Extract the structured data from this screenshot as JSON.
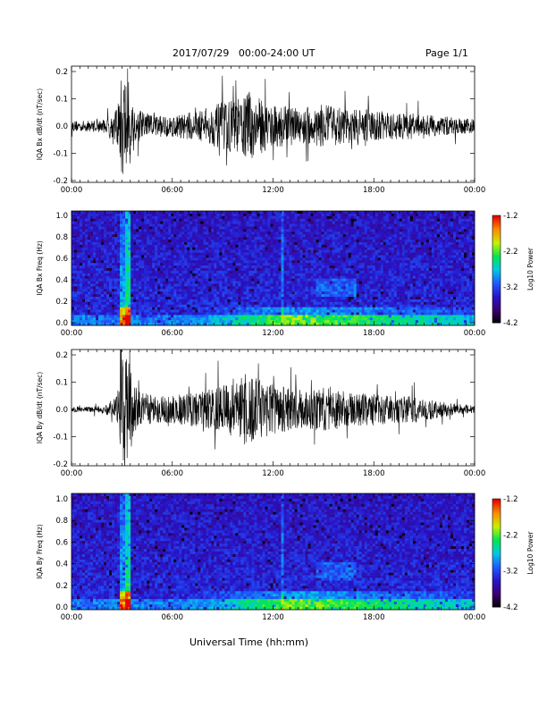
{
  "header": {
    "title": "2017/07/29   00:00-24:00 UT",
    "page": "Page 1/1"
  },
  "xlabel": "Universal Time (hh:mm)",
  "chart_data": [
    {
      "type": "line",
      "ylabel": "IQA Bx dB/dt (nT/sec)",
      "xlim": [
        "00:00",
        "24:00"
      ],
      "xticks": [
        "00:00",
        "06:00",
        "12:00",
        "18:00",
        "00:00"
      ],
      "ylim": [
        -0.2,
        0.2
      ],
      "yticks": [
        "-0.2",
        "-0.1",
        "0.0",
        "0.1",
        "0.2"
      ],
      "series": [
        {
          "x_hours": [
            0,
            1,
            2,
            2.7,
            3.0,
            3.3,
            3.6,
            4,
            5,
            6,
            7,
            8,
            9,
            10,
            10.5,
            11,
            12,
            13,
            14,
            15,
            16,
            17,
            18,
            19,
            20,
            21,
            22,
            23,
            24
          ],
          "amplitude": [
            0.02,
            0.02,
            0.025,
            0.06,
            0.2,
            0.2,
            0.12,
            0.06,
            0.04,
            0.04,
            0.05,
            0.06,
            0.09,
            0.1,
            0.13,
            0.11,
            0.08,
            0.07,
            0.07,
            0.08,
            0.07,
            0.06,
            0.06,
            0.05,
            0.05,
            0.04,
            0.04,
            0.03,
            0.025
          ]
        }
      ]
    },
    {
      "type": "heatmap",
      "ylabel": "IQA Bx Freq (Hz)",
      "xlim": [
        "00:00",
        "24:00"
      ],
      "xticks": [
        "00:00",
        "06:00",
        "12:00",
        "18:00",
        "00:00"
      ],
      "ylim": [
        0.0,
        1.0
      ],
      "yticks": [
        "0.0",
        "0.2",
        "0.4",
        "0.6",
        "0.8",
        "1.0"
      ],
      "colorbar": {
        "label": "Log10 Power",
        "range": [
          -4.2,
          -1.2
        ],
        "ticks": [
          "-1.2",
          "-2.2",
          "-3.2",
          "-4.2"
        ]
      }
    },
    {
      "type": "line",
      "ylabel": "IQA By dB/dt (nT/sec)",
      "xlim": [
        "00:00",
        "24:00"
      ],
      "xticks": [
        "00:00",
        "06:00",
        "12:00",
        "18:00",
        "00:00"
      ],
      "ylim": [
        -0.2,
        0.2
      ],
      "yticks": [
        "-0.2",
        "-0.1",
        "0.0",
        "0.1",
        "0.2"
      ],
      "series": [
        {
          "x_hours": [
            0,
            1,
            2,
            2.7,
            3.0,
            3.3,
            3.6,
            4,
            5,
            6,
            7,
            8,
            9,
            10,
            10.5,
            11,
            12,
            13,
            14,
            15,
            16,
            17,
            18,
            19,
            20,
            21,
            22,
            23,
            24
          ],
          "amplitude": [
            0.01,
            0.01,
            0.015,
            0.05,
            0.2,
            0.2,
            0.13,
            0.07,
            0.05,
            0.05,
            0.06,
            0.07,
            0.09,
            0.11,
            0.14,
            0.12,
            0.09,
            0.08,
            0.07,
            0.08,
            0.07,
            0.06,
            0.06,
            0.05,
            0.05,
            0.04,
            0.03,
            0.02,
            0.015
          ]
        }
      ]
    },
    {
      "type": "heatmap",
      "ylabel": "IQA By Freq (Hz)",
      "xlim": [
        "00:00",
        "24:00"
      ],
      "xticks": [
        "00:00",
        "06:00",
        "12:00",
        "18:00",
        "00:00"
      ],
      "ylim": [
        0.0,
        1.0
      ],
      "yticks": [
        "0.0",
        "0.2",
        "0.4",
        "0.6",
        "0.8",
        "1.0"
      ],
      "colorbar": {
        "label": "Log10 Power",
        "range": [
          -4.2,
          -1.2
        ],
        "ticks": [
          "-1.2",
          "-2.2",
          "-3.2",
          "-4.2"
        ]
      }
    }
  ]
}
